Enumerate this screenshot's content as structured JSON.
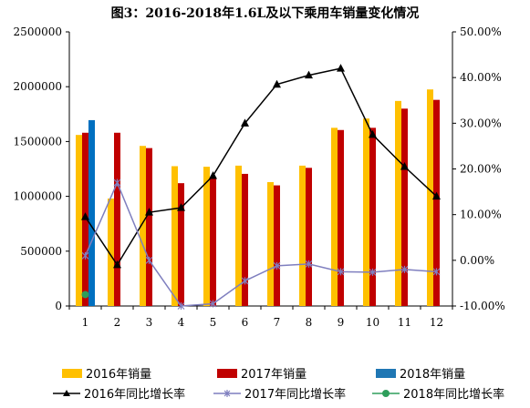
{
  "chart_data": {
    "type": "bar",
    "title": "图3：2016-2018年1.6L及以下乘用车销量变化情况",
    "categories": [
      "1",
      "2",
      "3",
      "4",
      "5",
      "6",
      "7",
      "8",
      "9",
      "10",
      "11",
      "12"
    ],
    "left_axis": {
      "ylim": [
        0,
        2500000
      ],
      "ticks": [
        "0",
        "500000",
        "1000000",
        "1500000",
        "2000000",
        "2500000"
      ]
    },
    "right_axis": {
      "ylim": [
        -10,
        50
      ],
      "ticks": [
        "-10.00%",
        "0.00%",
        "10.00%",
        "20.00%",
        "30.00%",
        "40.00%",
        "50.00%"
      ]
    },
    "bar_series": [
      {
        "name": "2016年销量",
        "color": "#FFC000",
        "values": [
          1560000,
          980000,
          1460000,
          1275000,
          1270000,
          1280000,
          1130000,
          1280000,
          1625000,
          1710000,
          1870000,
          1975000
        ]
      },
      {
        "name": "2017年销量",
        "color": "#C00000",
        "values": [
          1580000,
          1580000,
          1440000,
          1120000,
          1160000,
          1205000,
          1100000,
          1260000,
          1605000,
          1625000,
          1800000,
          1880000
        ]
      },
      {
        "name": "2018年销量",
        "color": "#0070C0",
        "values": [
          1695000,
          null,
          null,
          null,
          null,
          null,
          null,
          null,
          null,
          null,
          null,
          null
        ]
      }
    ],
    "line_series": [
      {
        "name": "2016年同比增长率",
        "color": "#000000",
        "marker": "triangle",
        "values": [
          9.5,
          -1,
          10.5,
          11.5,
          18.5,
          30,
          38.5,
          40.5,
          42,
          27.5,
          20.5,
          14
        ]
      },
      {
        "name": "2017年同比增长率",
        "color": "#7F7FBF",
        "marker": "x",
        "values": [
          1,
          17,
          0,
          -10,
          -9.5,
          -4.5,
          -1.2,
          -0.8,
          -2.5,
          -2.6,
          -2,
          -2.5
        ]
      },
      {
        "name": "2018年同比增长率",
        "color": "#2E9E5B",
        "marker": "circle",
        "values": [
          -7.5,
          null,
          null,
          null,
          null,
          null,
          null,
          null,
          null,
          null,
          null,
          null
        ]
      }
    ],
    "grid": false,
    "legend_position": "bottom"
  },
  "legend": {
    "bar2016": "2016年销量",
    "bar2017": "2017年销量",
    "bar2018": "2018年销量",
    "line2016": "2016年同比增长率",
    "line2017": "2017年同比增长率",
    "line2018": "2018年同比增长率"
  }
}
